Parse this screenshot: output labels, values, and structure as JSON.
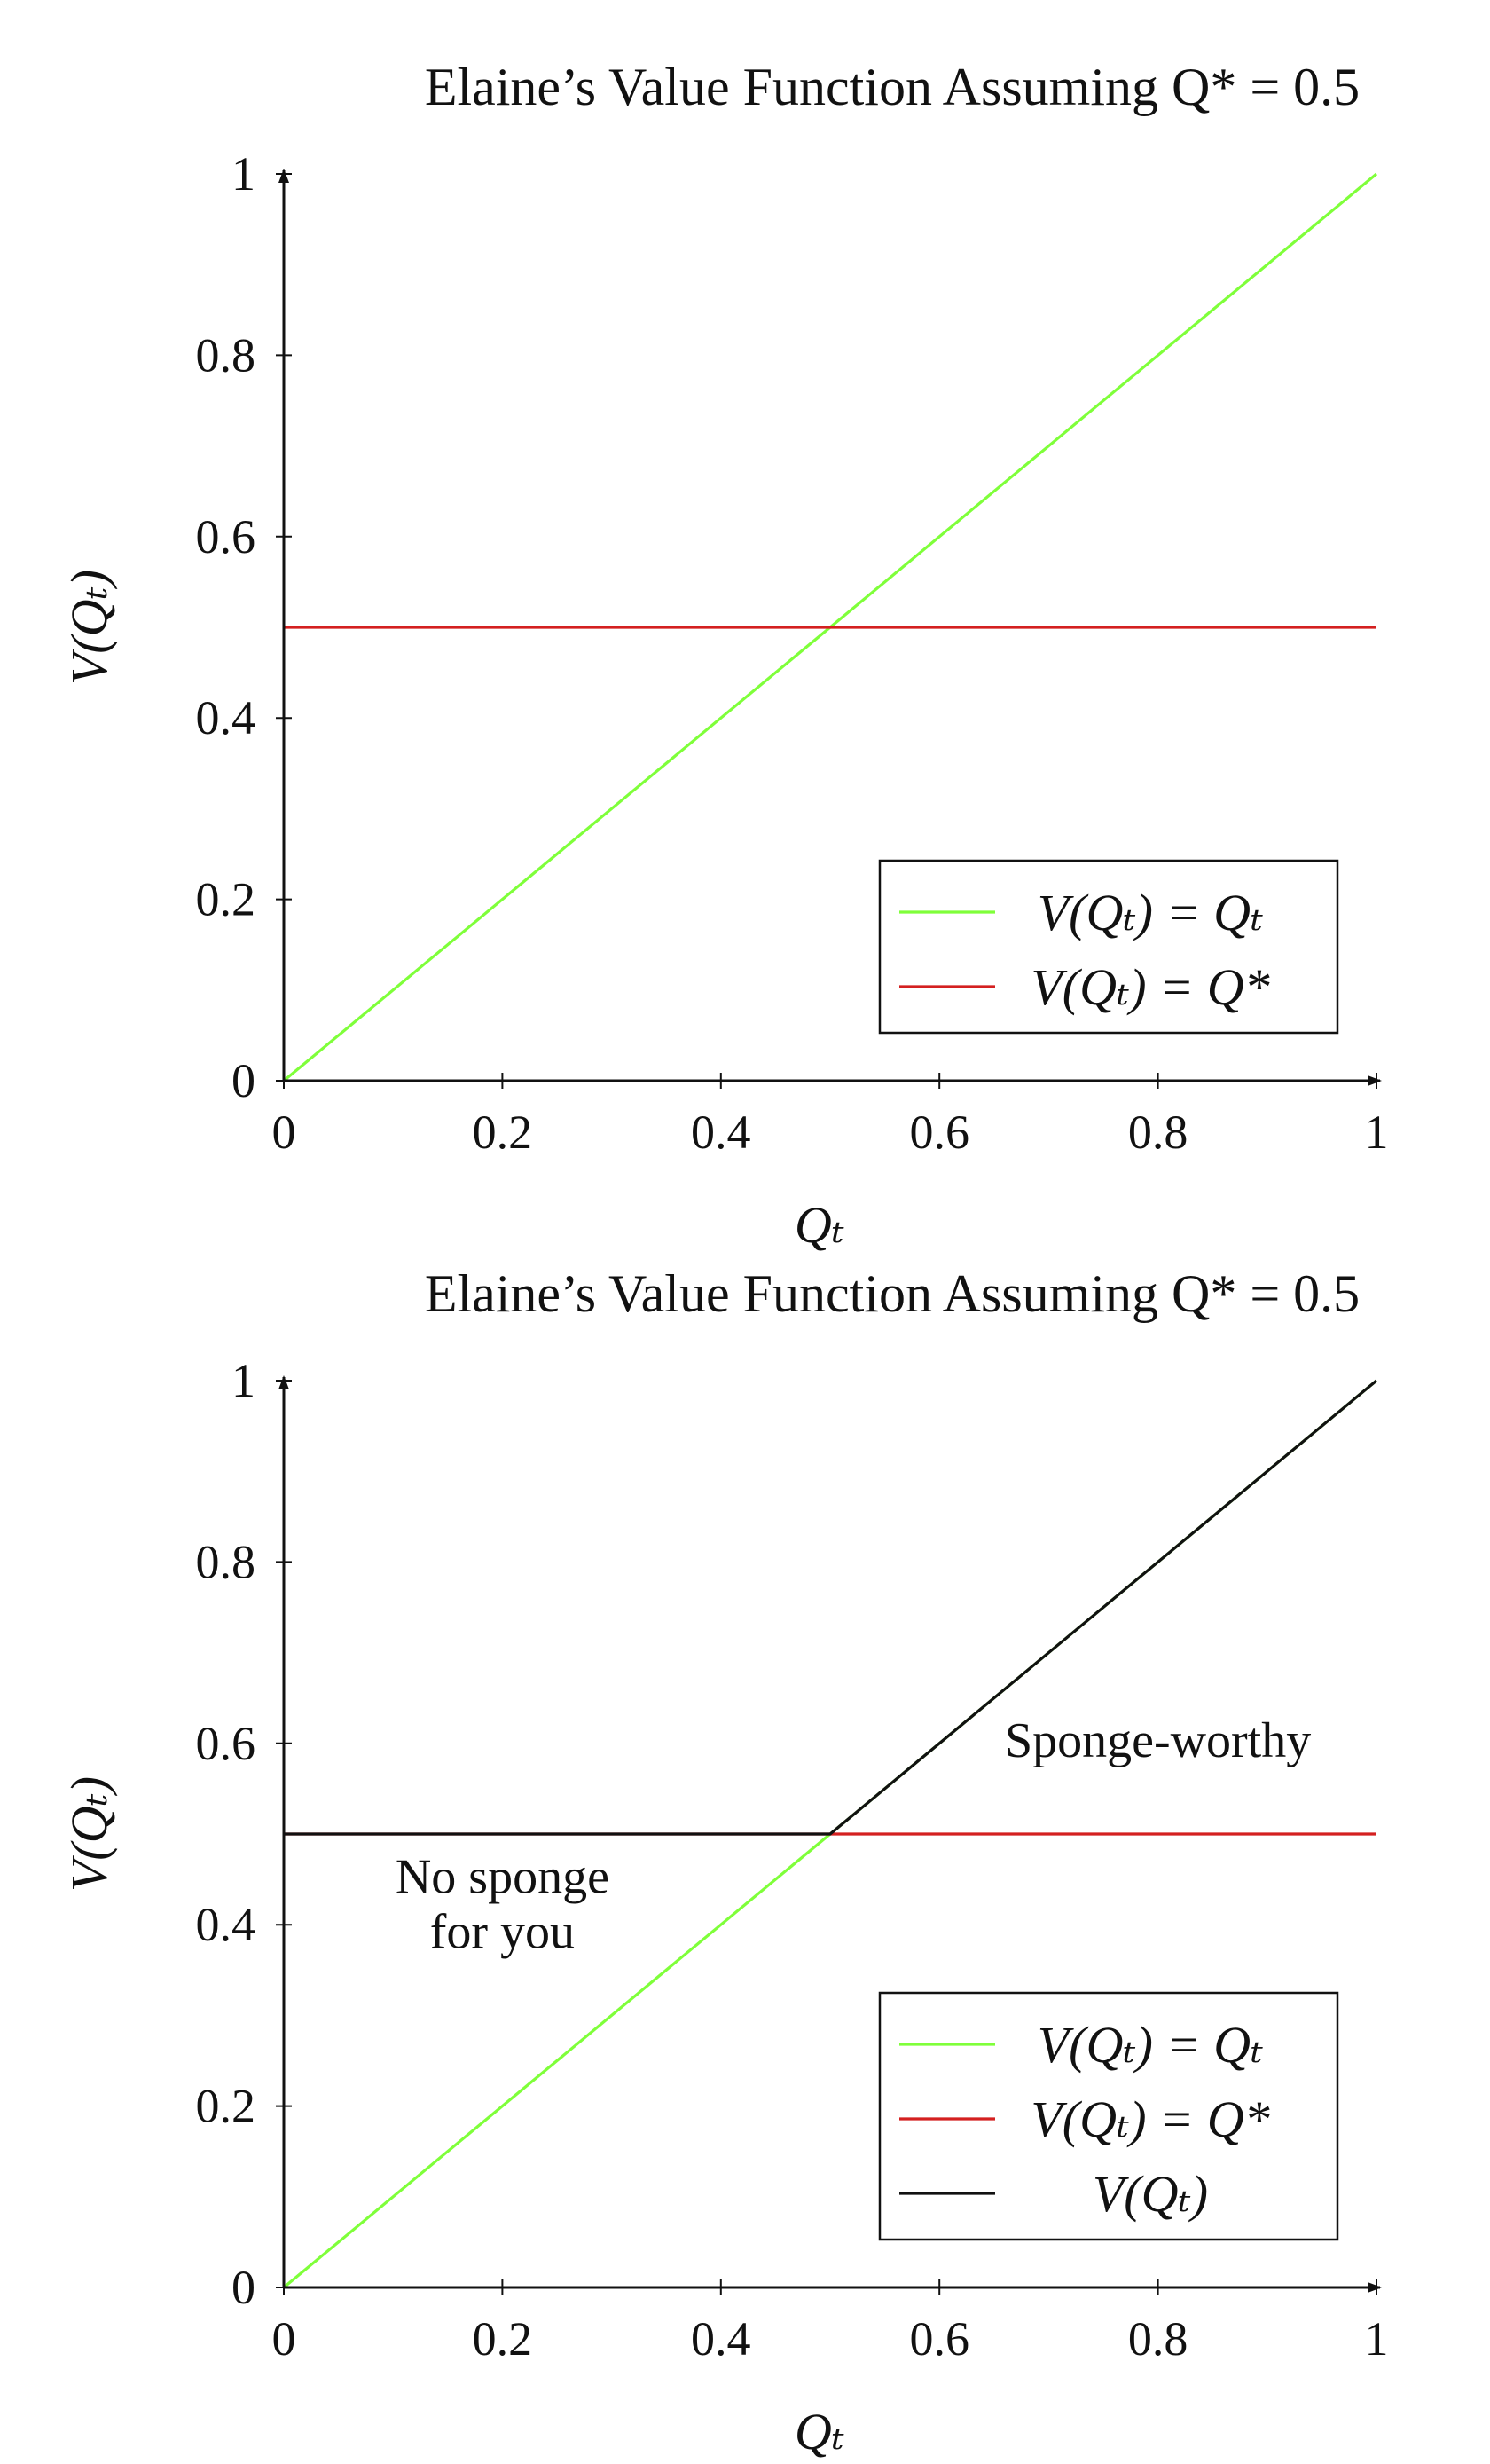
{
  "chart_data": [
    {
      "type": "line",
      "title": "Elaine’s Value Function Assuming Q* = 0.5",
      "xlabel": "Qₜ",
      "ylabel": "V(Qₜ)",
      "xlim": [
        0,
        1
      ],
      "ylim": [
        0,
        1
      ],
      "xticks": [
        "0",
        "0.2",
        "0.4",
        "0.6",
        "0.8",
        "1"
      ],
      "yticks": [
        "0",
        "0.2",
        "0.4",
        "0.6",
        "0.8",
        "1"
      ],
      "grid": false,
      "legend_position": "bottom-right",
      "series": [
        {
          "name": "V(Qₜ) = Qₜ",
          "color": "#7fff3a",
          "x": [
            0,
            1
          ],
          "y": [
            0,
            1
          ]
        },
        {
          "name": "V(Qₜ) = Q*",
          "color": "#d42020",
          "x": [
            0,
            1
          ],
          "y": [
            0.5,
            0.5
          ]
        }
      ],
      "annotations": []
    },
    {
      "type": "line",
      "title": "Elaine’s Value Function Assuming Q* = 0.5",
      "xlabel": "Qₜ",
      "ylabel": "V(Qₜ)",
      "xlim": [
        0,
        1
      ],
      "ylim": [
        0,
        1
      ],
      "xticks": [
        "0",
        "0.2",
        "0.4",
        "0.6",
        "0.8",
        "1"
      ],
      "yticks": [
        "0",
        "0.2",
        "0.4",
        "0.6",
        "0.8",
        "1"
      ],
      "grid": false,
      "legend_position": "bottom-right",
      "series": [
        {
          "name": "V(Qₜ) = Qₜ",
          "color": "#7fff3a",
          "x": [
            0,
            1
          ],
          "y": [
            0,
            1
          ]
        },
        {
          "name": "V(Qₜ) = Q*",
          "color": "#d42020",
          "x": [
            0,
            1
          ],
          "y": [
            0.5,
            0.5
          ]
        },
        {
          "name": "V(Qₜ)",
          "color": "#111111",
          "x": [
            0,
            0.5,
            1
          ],
          "y": [
            0.5,
            0.5,
            1
          ]
        }
      ],
      "annotations": [
        {
          "lines": [
            "No sponge",
            "for you"
          ],
          "x": 0.2,
          "y": 0.435
        },
        {
          "lines": [
            "Sponge-worthy"
          ],
          "x": 0.8,
          "y": 0.585
        }
      ]
    }
  ]
}
